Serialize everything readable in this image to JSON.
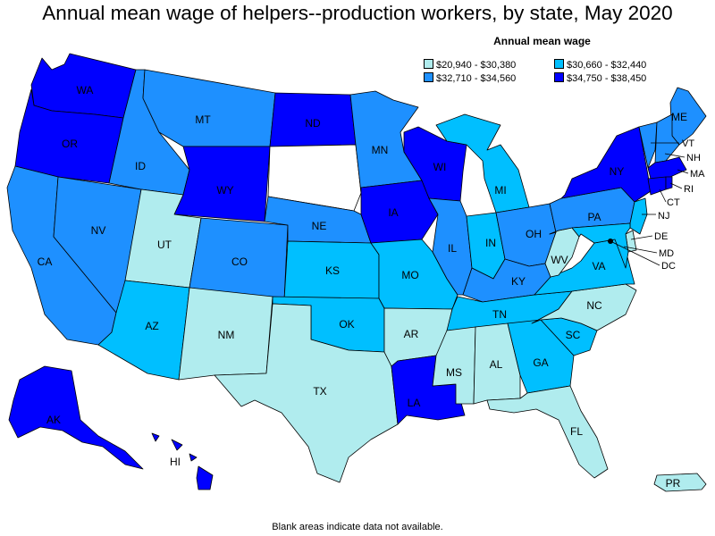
{
  "title": "Annual mean wage of helpers--production workers, by state, May 2020",
  "legend": {
    "title": "Annual mean wage",
    "items": [
      {
        "label": "$20,940 - $30,380",
        "color": "#b0ecee"
      },
      {
        "label": "$30,660 - $32,440",
        "color": "#00bfff"
      },
      {
        "label": "$32,710 - $34,560",
        "color": "#1e90ff"
      },
      {
        "label": "$34,750 - $38,450",
        "color": "#0000ff"
      }
    ]
  },
  "note": "Blank areas indicate data not available.",
  "states": {
    "WA": {
      "label": "WA",
      "color": "#0000ff"
    },
    "OR": {
      "label": "OR",
      "color": "#0000ff"
    },
    "CA": {
      "label": "CA",
      "color": "#1e90ff"
    },
    "NV": {
      "label": "NV",
      "color": "#1e90ff"
    },
    "ID": {
      "label": "ID",
      "color": "#1e90ff"
    },
    "MT": {
      "label": "MT",
      "color": "#1e90ff"
    },
    "WY": {
      "label": "WY",
      "color": "#0000ff"
    },
    "UT": {
      "label": "UT",
      "color": "#b0ecee"
    },
    "AZ": {
      "label": "AZ",
      "color": "#00bfff"
    },
    "CO": {
      "label": "CO",
      "color": "#1e90ff"
    },
    "NM": {
      "label": "NM",
      "color": "#b0ecee"
    },
    "ND": {
      "label": "ND",
      "color": "#0000ff"
    },
    "SD": {
      "label": "",
      "color": "#ffffff"
    },
    "NE": {
      "label": "NE",
      "color": "#1e90ff"
    },
    "KS": {
      "label": "KS",
      "color": "#00bfff"
    },
    "OK": {
      "label": "OK",
      "color": "#00bfff"
    },
    "TX": {
      "label": "TX",
      "color": "#b0ecee"
    },
    "MN": {
      "label": "MN",
      "color": "#1e90ff"
    },
    "IA": {
      "label": "IA",
      "color": "#0000ff"
    },
    "MO": {
      "label": "MO",
      "color": "#00bfff"
    },
    "AR": {
      "label": "AR",
      "color": "#b0ecee"
    },
    "LA": {
      "label": "LA",
      "color": "#0000ff"
    },
    "WI": {
      "label": "WI",
      "color": "#0000ff"
    },
    "IL": {
      "label": "IL",
      "color": "#1e90ff"
    },
    "MI": {
      "label": "MI",
      "color": "#00bfff"
    },
    "IN": {
      "label": "IN",
      "color": "#00bfff"
    },
    "OH": {
      "label": "OH",
      "color": "#1e90ff"
    },
    "KY": {
      "label": "KY",
      "color": "#1e90ff"
    },
    "TN": {
      "label": "TN",
      "color": "#00bfff"
    },
    "MS": {
      "label": "MS",
      "color": "#b0ecee"
    },
    "AL": {
      "label": "AL",
      "color": "#b0ecee"
    },
    "GA": {
      "label": "GA",
      "color": "#00bfff"
    },
    "FL": {
      "label": "FL",
      "color": "#b0ecee"
    },
    "SC": {
      "label": "SC",
      "color": "#00bfff"
    },
    "NC": {
      "label": "NC",
      "color": "#b0ecee"
    },
    "VA": {
      "label": "VA",
      "color": "#00bfff"
    },
    "WV": {
      "label": "WV",
      "color": "#b0ecee"
    },
    "PA": {
      "label": "PA",
      "color": "#1e90ff"
    },
    "NY": {
      "label": "NY",
      "color": "#0000ff"
    },
    "ME": {
      "label": "ME",
      "color": "#1e90ff"
    },
    "VT": {
      "label": "VT",
      "color": "#1e90ff"
    },
    "NH": {
      "label": "NH",
      "color": "#1e90ff"
    },
    "MA": {
      "label": "MA",
      "color": "#0000ff"
    },
    "RI": {
      "label": "RI",
      "color": "#0000ff"
    },
    "CT": {
      "label": "CT",
      "color": "#0000ff"
    },
    "NJ": {
      "label": "NJ",
      "color": "#00bfff"
    },
    "DE": {
      "label": "DE",
      "color": "#b0ecee"
    },
    "MD": {
      "label": "MD",
      "color": "#00bfff"
    },
    "DC": {
      "label": "DC",
      "color": "#000000"
    },
    "AK": {
      "label": "AK",
      "color": "#0000ff"
    },
    "HI": {
      "label": "HI",
      "color": "#0000ff"
    },
    "PR": {
      "label": "PR",
      "color": "#b0ecee"
    }
  }
}
